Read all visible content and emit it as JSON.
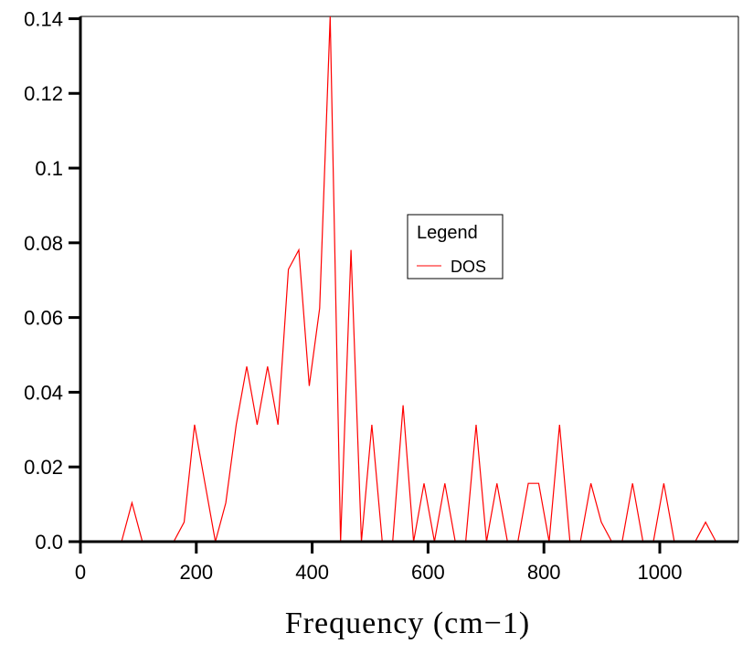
{
  "chart_data": {
    "type": "line",
    "title": "",
    "xlabel": "Frequency (cm−1)",
    "ylabel": "",
    "xlim": [
      0,
      1135
    ],
    "ylim": [
      0,
      0.1406
    ],
    "grid": false,
    "legend": {
      "title": "Legend",
      "placement": "center-right"
    },
    "x_ticks": [
      "0",
      "200",
      "400",
      "600",
      "800",
      "1000"
    ],
    "x_tick_values": [
      0,
      200,
      400,
      600,
      800,
      1000
    ],
    "y_ticks": [
      "0.0",
      "0.02",
      "0.04",
      "0.06",
      "0.08",
      "0.1",
      "0.12",
      "0.14"
    ],
    "y_tick_values": [
      0,
      0.02,
      0.04,
      0.06,
      0.08,
      0.1,
      0.12,
      0.14
    ],
    "series": [
      {
        "name": "DOS",
        "color": "#ff0000",
        "x": [
          71,
          89,
          107,
          125,
          143,
          161,
          179,
          197,
          215,
          233,
          251,
          269,
          287,
          305,
          323,
          341,
          359,
          377,
          395,
          413,
          431,
          449,
          467,
          485,
          503,
          521,
          539,
          557,
          575,
          593,
          611,
          629,
          647,
          665,
          683,
          701,
          719,
          737,
          755,
          773,
          791,
          809,
          827,
          845,
          863,
          881,
          899,
          917,
          935,
          953,
          971,
          989,
          1007,
          1025,
          1043,
          1061,
          1079,
          1097
        ],
        "y": [
          0,
          0.0104,
          0,
          0,
          0,
          0,
          0.0052,
          0.0313,
          0.0156,
          0,
          0.0104,
          0.0313,
          0.0469,
          0.0313,
          0.0469,
          0.0313,
          0.0729,
          0.0781,
          0.0417,
          0.0625,
          0.1406,
          0,
          0.0781,
          0,
          0.0313,
          0,
          0,
          0.0365,
          0,
          0.0156,
          0,
          0.0156,
          0,
          0,
          0.0313,
          0,
          0.0156,
          0,
          0,
          0.0156,
          0.0156,
          0,
          0.0313,
          0,
          0,
          0.0156,
          0.0052,
          0,
          0,
          0.0156,
          0,
          0,
          0.0156,
          0,
          0,
          0,
          0.0052,
          0
        ]
      }
    ]
  }
}
